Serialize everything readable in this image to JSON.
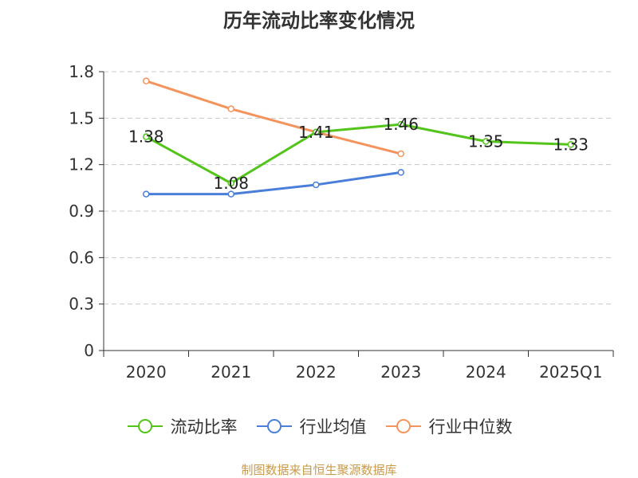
{
  "title": "历年流动比率变化情况",
  "source": "制图数据来自恒生聚源数据库",
  "chart_data": {
    "type": "line",
    "categories": [
      "2020",
      "2021",
      "2022",
      "2023",
      "2024",
      "2025Q1"
    ],
    "y_ticks": [
      "0",
      "0.3",
      "0.6",
      "0.9",
      "1.2",
      "1.5",
      "1.8"
    ],
    "ylim": [
      0,
      1.8
    ],
    "grid": true,
    "legend_position": "bottom",
    "xlabel": "",
    "ylabel": "",
    "series": [
      {
        "name": "流动比率",
        "color": "#52c41a",
        "values": [
          1.38,
          1.08,
          1.41,
          1.46,
          1.35,
          1.33
        ],
        "labels": [
          "1.38",
          "1.08",
          "1.41",
          "1.46",
          "1.35",
          "1.33"
        ]
      },
      {
        "name": "行业均值",
        "color": "#4a7fd9",
        "values": [
          1.01,
          1.01,
          1.07,
          1.15,
          null,
          null
        ]
      },
      {
        "name": "行业中位数",
        "color": "#f4935c",
        "values": [
          1.74,
          1.56,
          1.41,
          1.27,
          null,
          null
        ]
      }
    ]
  }
}
